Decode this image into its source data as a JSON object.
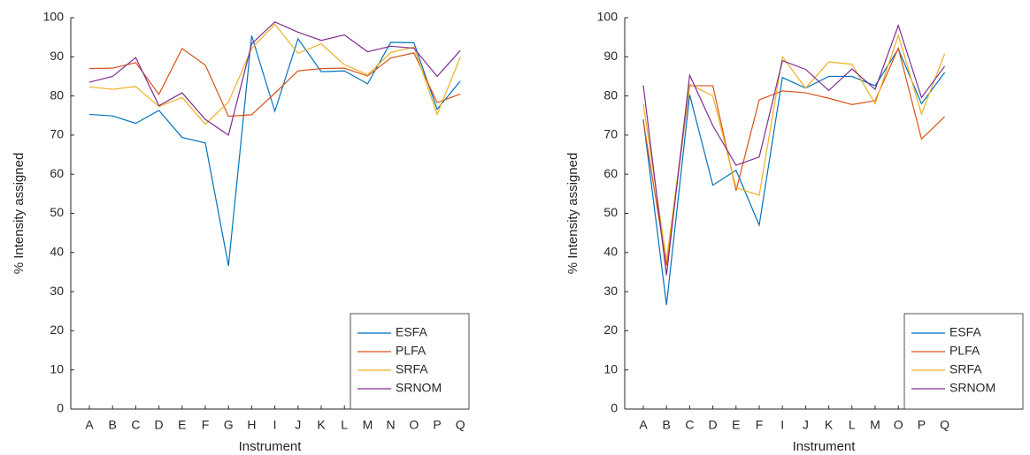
{
  "chart_data": [
    {
      "type": "line",
      "x_label": "Instrument",
      "y_label": "% Intensity assigned",
      "categories": [
        "A",
        "B",
        "C",
        "D",
        "E",
        "F",
        "G",
        "H",
        "I",
        "J",
        "K",
        "L",
        "M",
        "N",
        "O",
        "P",
        "Q"
      ],
      "ylim": [
        0,
        100
      ],
      "yticks": [
        0,
        10,
        20,
        30,
        40,
        50,
        60,
        70,
        80,
        90,
        100
      ],
      "legend": "lower right",
      "series": [
        {
          "name": "ESFA",
          "color": "#0072bd",
          "values": [
            75.3,
            74.9,
            73,
            76.3,
            69.4,
            68,
            36.6,
            95.4,
            76.1,
            94.6,
            86.2,
            86.4,
            83.1,
            93.7,
            93.6,
            76.6,
            83.8
          ]
        },
        {
          "name": "PLFA",
          "color": "#d95319",
          "values": [
            87,
            87.1,
            88.5,
            80.4,
            92.1,
            87.9,
            74.8,
            75.2,
            80.7,
            86.4,
            87,
            87.1,
            85.1,
            89.7,
            91,
            78.3,
            80.5
          ]
        },
        {
          "name": "SRFA",
          "color": "#edb120",
          "values": [
            82.3,
            81.7,
            82.4,
            77.3,
            79.6,
            72.8,
            78.4,
            92.1,
            98.3,
            90.9,
            93.3,
            88,
            85.4,
            91.1,
            92.5,
            75.3,
            89.9
          ]
        },
        {
          "name": "SRNOM",
          "color": "#7e2f8e",
          "values": [
            83.5,
            85,
            89.8,
            77.5,
            80.8,
            74,
            70,
            93.3,
            98.9,
            96.3,
            94.2,
            95.6,
            91.3,
            92.7,
            92.2,
            85,
            91.6
          ]
        }
      ]
    },
    {
      "type": "line",
      "x_label": "Instrument",
      "y_label": "% Intensity assigned",
      "categories": [
        "A",
        "B",
        "C",
        "D",
        "E",
        "F",
        "I",
        "J",
        "K",
        "L",
        "M",
        "O",
        "P",
        "Q"
      ],
      "ylim": [
        0,
        100
      ],
      "yticks": [
        0,
        10,
        20,
        30,
        40,
        50,
        60,
        70,
        80,
        90,
        100
      ],
      "legend": "lower right",
      "series": [
        {
          "name": "ESFA",
          "color": "#0072bd",
          "values": [
            74,
            26.6,
            80.3,
            57.2,
            61,
            47,
            84.7,
            82,
            85,
            85,
            82.6,
            92,
            78,
            86
          ]
        },
        {
          "name": "PLFA",
          "color": "#d95319",
          "values": [
            73.6,
            36.7,
            82.6,
            82.6,
            55.8,
            79,
            81.3,
            80.8,
            79.4,
            77.8,
            78.8,
            92.2,
            69,
            74.7
          ]
        },
        {
          "name": "SRFA",
          "color": "#edb120",
          "values": [
            78,
            38,
            83,
            80,
            56.6,
            54.6,
            90,
            82,
            88.7,
            88.1,
            78,
            95.5,
            75.4,
            90.8
          ]
        },
        {
          "name": "SRNOM",
          "color": "#7e2f8e",
          "values": [
            82.7,
            34.2,
            85.3,
            72.4,
            62.3,
            64.4,
            89,
            86.8,
            81.4,
            86.9,
            81.7,
            98,
            79.6,
            87.6
          ]
        }
      ]
    }
  ]
}
